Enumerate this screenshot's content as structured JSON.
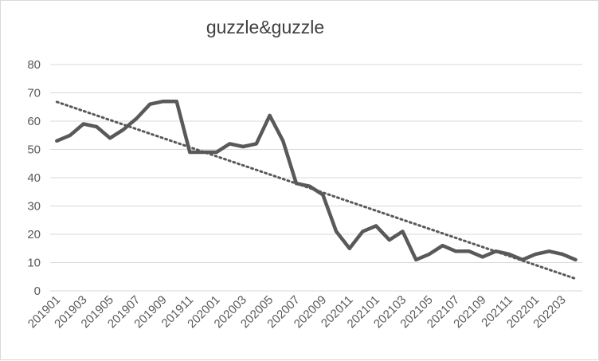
{
  "chart_data": {
    "type": "line",
    "title": "guzzle&guzzle",
    "xlabel": "",
    "ylabel": "",
    "ylim": [
      0,
      80
    ],
    "yticks": [
      0,
      10,
      20,
      30,
      40,
      50,
      60,
      70,
      80
    ],
    "grid": true,
    "legend": "none",
    "categories": [
      "201901",
      "201902",
      "201903",
      "201904",
      "201905",
      "201906",
      "201907",
      "201908",
      "201909",
      "201910",
      "201911",
      "201912",
      "202001",
      "202002",
      "202003",
      "202004",
      "202005",
      "202006",
      "202007",
      "202008",
      "202009",
      "202010",
      "202011",
      "202012",
      "202101",
      "202102",
      "202103",
      "202104",
      "202105",
      "202106",
      "202107",
      "202108",
      "202109",
      "202110",
      "202111",
      "202112",
      "202201",
      "202202",
      "202203",
      "202204"
    ],
    "xtick_labels": [
      "201901",
      "201903",
      "201905",
      "201907",
      "201909",
      "201911",
      "202001",
      "202003",
      "202005",
      "202007",
      "202009",
      "202011",
      "202101",
      "202103",
      "202105",
      "202107",
      "202109",
      "202111",
      "202201",
      "202203"
    ],
    "series": [
      {
        "values": [
          53,
          55,
          59,
          58,
          54,
          57,
          61,
          66,
          67,
          67,
          49,
          49,
          49,
          52,
          51,
          52,
          62,
          53,
          38,
          37,
          34,
          21,
          15,
          21,
          23,
          18,
          21,
          11,
          13,
          16,
          14,
          14,
          12,
          14,
          13,
          11,
          13,
          14,
          13,
          11
        ],
        "color": "#595959",
        "style": "solid"
      }
    ],
    "trendline": {
      "type": "linear",
      "color": "#595959",
      "style": "dotted",
      "start": 66.8,
      "end": 4.3
    }
  }
}
